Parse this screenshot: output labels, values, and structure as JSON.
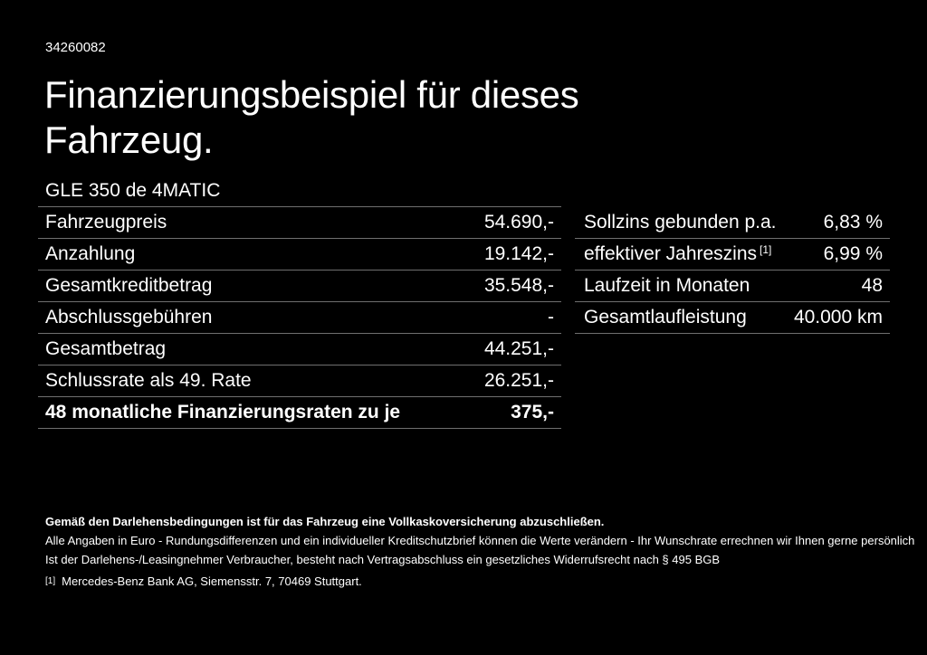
{
  "colors": {
    "background": "#000000",
    "text": "#ffffff",
    "divider": "#6f6f6f"
  },
  "header": {
    "doc_number": "34260082",
    "title_line1": "Finanzierungsbeispiel für dieses",
    "title_line2": "Fahrzeug.",
    "vehicle_model": "GLE 350 de 4MATIC"
  },
  "financing": {
    "rows": [
      {
        "label": "Fahrzeugpreis",
        "value": "54.690,-"
      },
      {
        "label": "Anzahlung",
        "value": "19.142,-"
      },
      {
        "label": "Gesamtkreditbetrag",
        "value": "35.548,-"
      },
      {
        "label": "Abschlussgebühren",
        "value": "-"
      },
      {
        "label": "Gesamtbetrag",
        "value": "44.251,-"
      },
      {
        "label": "Schlussrate als 49. Rate",
        "value": "26.251,-"
      },
      {
        "label": "48 monatliche Finanzierungsraten zu je",
        "value": "375,-"
      }
    ]
  },
  "conditions": {
    "rows": [
      {
        "label": "Sollzins gebunden p.a.",
        "value": "6,83 %"
      },
      {
        "label": "effektiver Jahreszins",
        "sup": "[1]",
        "value": "6,99 %"
      },
      {
        "label": "Laufzeit in Monaten",
        "value": "48"
      },
      {
        "label": "Gesamtlaufleistung",
        "value": "40.000 km"
      }
    ]
  },
  "footer": {
    "insurance_note": "Gemäß den Darlehensbedingungen ist für das Fahrzeug eine Vollkaskoversicherung abzuschließen.",
    "disclaimer_line1": "Alle Angaben in Euro - Rundungsdifferenzen und ein individueller Kreditschutzbrief können die Werte verändern - Ihr Wunschrate errechnen wir Ihnen gerne persönlich",
    "disclaimer_line2": "Ist der Darlehens-/Leasingnehmer Verbraucher, besteht nach Vertragsabschluss ein gesetzliches Widerrufsrecht nach § 495 BGB",
    "footnote_marker": "[1]",
    "footnote_text": "Mercedes-Benz Bank AG, Siemensstr. 7, 70469 Stuttgart."
  }
}
